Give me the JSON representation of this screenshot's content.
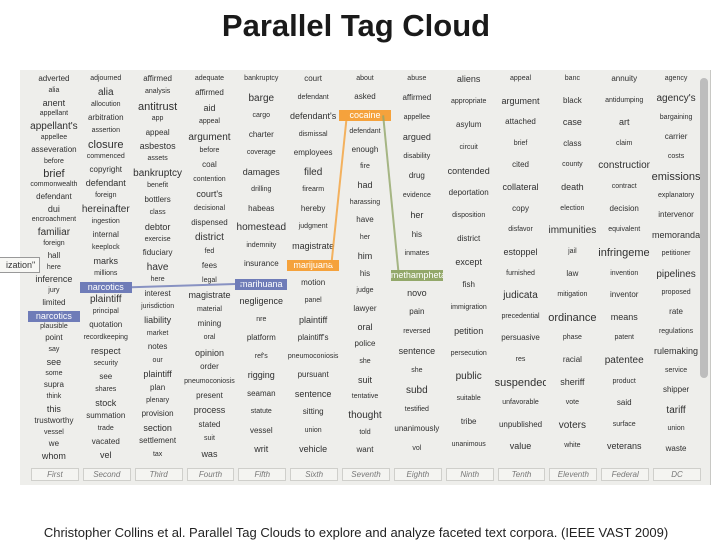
{
  "title": "Parallel Tag Cloud",
  "caption": "Christopher Collins et al. Parallel Tag Clouds to explore and analyze faceted text corpora. (IEEE VAST 2009)",
  "tooltip": "ization\"",
  "colors": {
    "green": "#93a86a",
    "orange": "#f5a23c",
    "blue": "#6f7cb8"
  },
  "columns": [
    {
      "label": "First",
      "words": [
        "adverted",
        "alia",
        "anent",
        "appellant",
        "appellant's",
        "appellee",
        "asseveration",
        "before",
        "brief",
        "commonwealth",
        "defendant",
        "dui",
        "encroachment",
        "familiar",
        "foreign",
        "hall",
        "here",
        "inference",
        "jury",
        "limited",
        "narcotics",
        "plausible",
        "point",
        "say",
        "see",
        "some",
        "supra",
        "think",
        "this",
        "trustworthy",
        "vessel",
        "we",
        "whom"
      ]
    },
    {
      "label": "Second",
      "words": [
        "adjourned",
        "alia",
        "allocution",
        "arbitration",
        "assertion",
        "closure",
        "commenced",
        "copyright",
        "defendant",
        "foreign",
        "hereinafter",
        "ingestion",
        "internal",
        "keeplock",
        "marks",
        "millions",
        "narcotics",
        "plaintiff",
        "principal",
        "quotation",
        "recordkeeping",
        "respect",
        "security",
        "see",
        "shares",
        "stock",
        "summation",
        "trade",
        "vacated",
        "vel"
      ]
    },
    {
      "label": "Third",
      "words": [
        "affirmed",
        "analysis",
        "antitrust",
        "app",
        "appeal",
        "asbestos",
        "assets",
        "bankruptcy",
        "benefit",
        "bottlers",
        "class",
        "debtor",
        "exercise",
        "fiduciary",
        "have",
        "here",
        "interest",
        "jurisdiction",
        "liability",
        "market",
        "notes",
        "our",
        "plaintiff",
        "plan",
        "plenary",
        "provision",
        "section",
        "settlement",
        "tax"
      ]
    },
    {
      "label": "Fourth",
      "words": [
        "adequate",
        "affirmed",
        "aid",
        "appeal",
        "argument",
        "before",
        "coal",
        "contention",
        "court's",
        "decisional",
        "dispensed",
        "district",
        "fed",
        "fees",
        "legal",
        "magistrate",
        "material",
        "mining",
        "oral",
        "opinion",
        "order",
        "pneumoconiosis",
        "present",
        "process",
        "stated",
        "suit",
        "was"
      ]
    },
    {
      "label": "Fifth",
      "words": [
        "bankruptcy",
        "barge",
        "cargo",
        "charter",
        "coverage",
        "damages",
        "drilling",
        "habeas",
        "homestead",
        "indemnity",
        "insurance",
        "marihuana",
        "negligence",
        "nre",
        "platform",
        "ref's",
        "rigging",
        "seaman",
        "statute",
        "vessel",
        "writ"
      ]
    },
    {
      "label": "Sixth",
      "words": [
        "court",
        "defendant",
        "defendant's",
        "dismissal",
        "employees",
        "filed",
        "firearm",
        "hereby",
        "judgment",
        "magistrate",
        "marijuana",
        "motion",
        "panel",
        "plaintiff",
        "plaintiff's",
        "pneumoconiosis",
        "pursuant",
        "sentence",
        "sitting",
        "union",
        "vehicle"
      ]
    },
    {
      "label": "Seventh",
      "words": [
        "about",
        "asked",
        "cocaine",
        "defendant",
        "enough",
        "fire",
        "had",
        "harassing",
        "have",
        "her",
        "him",
        "his",
        "judge",
        "lawyer",
        "oral",
        "police",
        "she",
        "suit",
        "tentative",
        "thought",
        "told",
        "want"
      ]
    },
    {
      "label": "Eighth",
      "words": [
        "abuse",
        "affirmed",
        "appellee",
        "argued",
        "disability",
        "drug",
        "evidence",
        "her",
        "his",
        "inmates",
        "methamphetamine",
        "novo",
        "pain",
        "reversed",
        "sentence",
        "she",
        "subd",
        "testified",
        "unanimously",
        "vol"
      ]
    },
    {
      "label": "Ninth",
      "words": [
        "aliens",
        "appropriate",
        "asylum",
        "circuit",
        "contended",
        "deportation",
        "disposition",
        "district",
        "except",
        "fish",
        "immigration",
        "petition",
        "persecution",
        "public",
        "suitable",
        "tribe",
        "unanimous"
      ]
    },
    {
      "label": "Tenth",
      "words": [
        "appeal",
        "argument",
        "attached",
        "brief",
        "cited",
        "collateral",
        "copy",
        "disfavor",
        "estoppel",
        "furnished",
        "judicata",
        "precedential",
        "persuasive",
        "res",
        "suspended",
        "unfavorable",
        "unpublished",
        "value"
      ]
    },
    {
      "label": "Eleventh",
      "words": [
        "banc",
        "black",
        "case",
        "class",
        "county",
        "death",
        "election",
        "immunities",
        "jail",
        "law",
        "mitigation",
        "ordinance",
        "phase",
        "racial",
        "sheriff",
        "vote",
        "voters",
        "white"
      ]
    },
    {
      "label": "Federal",
      "words": [
        "annuity",
        "antidumping",
        "art",
        "claim",
        "construction",
        "contract",
        "decision",
        "equivalent",
        "infringement",
        "invention",
        "inventor",
        "means",
        "patent",
        "patentee",
        "product",
        "said",
        "surface",
        "veterans"
      ]
    },
    {
      "label": "DC",
      "words": [
        "agency",
        "agency's",
        "bargaining",
        "carrier",
        "costs",
        "emissions",
        "explanatory",
        "intervenor",
        "memoranda",
        "petitioner",
        "pipelines",
        "proposed",
        "rate",
        "regulations",
        "rulemaking",
        "service",
        "shipper",
        "tariff",
        "union",
        "waste"
      ]
    }
  ],
  "highlighted_words": [
    "cocaine",
    "marihuana",
    "marijuana",
    "methamphetamine",
    "narcotics"
  ],
  "footer_labels": [
    "First",
    "Second",
    "Third",
    "Fourth",
    "Fifth",
    "Sixth",
    "Seventh",
    "Eighth",
    "Ninth",
    "Tenth",
    "Eleventh",
    "Federal",
    "DC"
  ]
}
